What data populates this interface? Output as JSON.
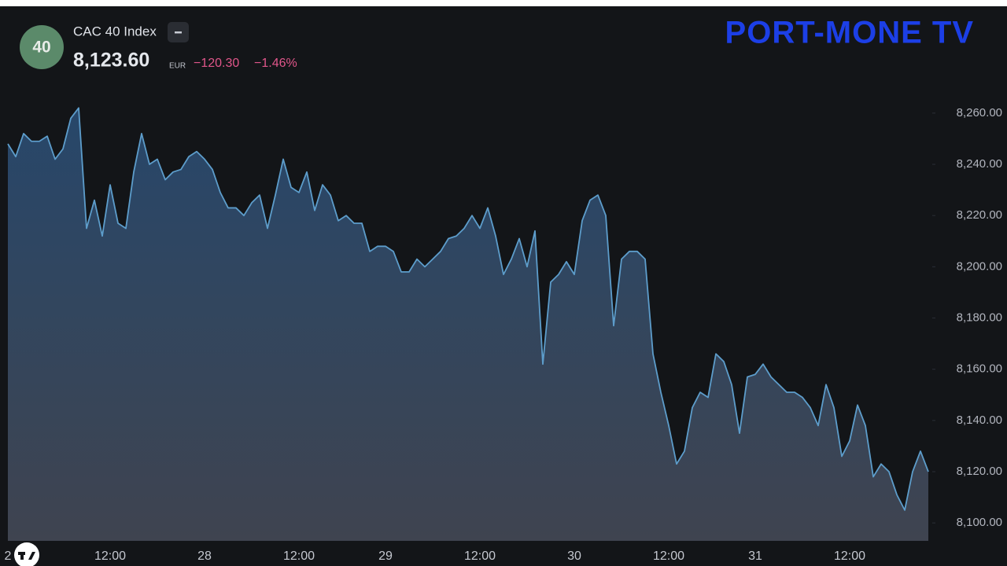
{
  "header": {
    "badge": "40",
    "price": "8,123.60",
    "currency": "EUR",
    "change": "−120.30",
    "change_pct": "−1.46%",
    "logo": "PORT-MONE TV"
  },
  "chart_data": {
    "type": "area",
    "title": "CAC 40 Index",
    "color": "#5d9dcb",
    "categories": [
      "2",
      null,
      null,
      null,
      null,
      null,
      null,
      null,
      null,
      null,
      null,
      null,
      null,
      "12:00",
      null,
      null,
      null,
      null,
      null,
      null,
      null,
      null,
      null,
      null,
      null,
      "28",
      null,
      null,
      null,
      null,
      null,
      null,
      null,
      null,
      null,
      null,
      null,
      "12:00",
      null,
      null,
      null,
      null,
      null,
      null,
      null,
      null,
      null,
      null,
      "29",
      null,
      null,
      null,
      null,
      null,
      null,
      null,
      null,
      null,
      null,
      null,
      "12:00",
      null,
      null,
      null,
      null,
      null,
      null,
      null,
      null,
      null,
      null,
      null,
      "30",
      null,
      null,
      null,
      null,
      null,
      null,
      null,
      null,
      null,
      null,
      null,
      "12:00",
      null,
      null,
      null,
      null,
      null,
      null,
      null,
      null,
      null,
      null,
      "31",
      null,
      null,
      null,
      null,
      null,
      null,
      null,
      null,
      null,
      null,
      null,
      "12:00",
      null,
      null,
      null,
      null,
      null,
      null,
      null,
      null,
      null,
      null
    ],
    "values": [
      8248,
      8243,
      8252,
      8249,
      8249,
      8251,
      8242,
      8246,
      8258,
      8262,
      8215,
      8226,
      8212,
      8232,
      8217,
      8215,
      8237,
      8252,
      8240,
      8242,
      8234,
      8237,
      8238,
      8243,
      8245,
      8242,
      8238,
      8229,
      8223,
      8223,
      8220,
      8225,
      8228,
      8215,
      8228,
      8242,
      8231,
      8229,
      8237,
      8222,
      8232,
      8228,
      8218,
      8220,
      8217,
      8217,
      8206,
      8208,
      8208,
      8206,
      8198,
      8198,
      8203,
      8200,
      8203,
      8206,
      8211,
      8212,
      8215,
      8220,
      8215,
      8223,
      8212,
      8197,
      8203,
      8211,
      8200,
      8214,
      8162,
      8194,
      8197,
      8202,
      8197,
      8218,
      8226,
      8228,
      8220,
      8177,
      8203,
      8206,
      8206,
      8203,
      8166,
      8151,
      8138,
      8123,
      8128,
      8145,
      8151,
      8149,
      8166,
      8163,
      8154,
      8135,
      8157,
      8158,
      8162,
      8157,
      8154,
      8151,
      8151,
      8149,
      8145,
      8138,
      8154,
      8145,
      8126,
      8132,
      8146,
      8138,
      8118,
      8123,
      8120,
      8111,
      8105,
      8120,
      8128,
      8120
    ],
    "ylim": [
      8093,
      8275
    ],
    "yticks": [
      {
        "value": 8100,
        "label": "8,100.00"
      },
      {
        "value": 8120,
        "label": "8,120.00"
      },
      {
        "value": 8140,
        "label": "8,140.00"
      },
      {
        "value": 8160,
        "label": "8,160.00"
      },
      {
        "value": 8180,
        "label": "8,180.00"
      },
      {
        "value": 8200,
        "label": "8,200.00"
      },
      {
        "value": 8220,
        "label": "8,220.00"
      },
      {
        "value": 8240,
        "label": "8,240.00"
      },
      {
        "value": 8260,
        "label": "8,260.00"
      }
    ],
    "grid": false
  }
}
